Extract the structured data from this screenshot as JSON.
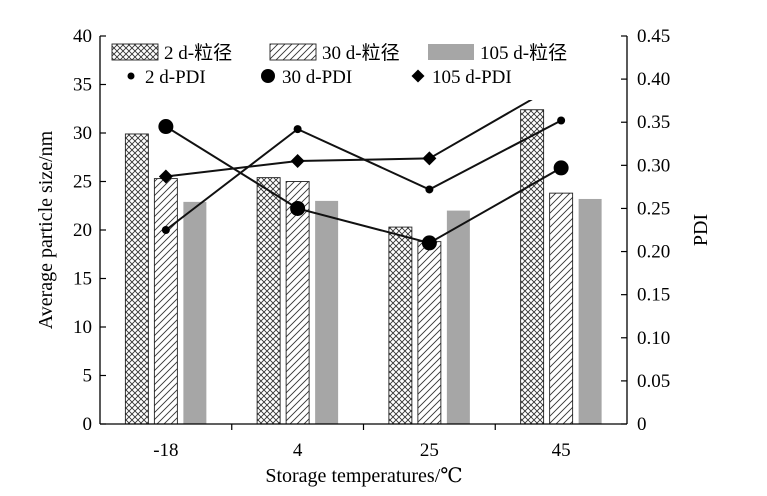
{
  "chart_data": {
    "type": "bar",
    "title": "",
    "xlabel": "Storage temperatures/℃",
    "ylabel_left": "Average particle size/nm",
    "ylabel_right": "PDI",
    "categories": [
      "-18",
      "4",
      "25",
      "45"
    ],
    "ylim_left": [
      0,
      40
    ],
    "ylim_right": [
      0,
      0.45
    ],
    "yticks_left": [
      "0",
      "5",
      "10",
      "15",
      "20",
      "25",
      "30",
      "35",
      "40"
    ],
    "yticks_right": [
      "0",
      "0.05",
      "0.10",
      "0.15",
      "0.20",
      "0.25",
      "0.30",
      "0.35",
      "0.40",
      "0.45"
    ],
    "grid": false,
    "legend_position": "top",
    "bar_series": [
      {
        "name": "2 d-粒径",
        "values": [
          29.9,
          25.4,
          20.3,
          32.4
        ],
        "style": "crosshatch"
      },
      {
        "name": "30 d-粒径",
        "values": [
          25.3,
          25.0,
          18.8,
          23.8
        ],
        "style": "diagonal"
      },
      {
        "name": "105 d-粒径",
        "values": [
          22.9,
          23.0,
          22.0,
          23.2
        ],
        "style": "solid",
        "color": "#a6a6a6"
      }
    ],
    "line_series": [
      {
        "name": "2 d-PDI",
        "values": [
          0.225,
          0.342,
          0.272,
          0.352
        ],
        "marker": "small-dot"
      },
      {
        "name": "30 d-PDI",
        "values": [
          0.345,
          0.25,
          0.21,
          0.297
        ],
        "marker": "large-dot"
      },
      {
        "name": "105 d-PDI",
        "values": [
          0.287,
          0.305,
          0.308,
          0.396
        ],
        "marker": "diamond"
      }
    ]
  }
}
